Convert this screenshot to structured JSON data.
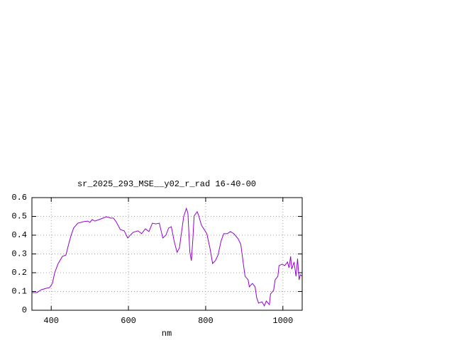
{
  "chart_data": {
    "type": "line",
    "title": "sr_2025_293_MSE__y02_r_rad 16-40-00",
    "x_label": "nm",
    "x": [
      350,
      363,
      374,
      387,
      396,
      403,
      409,
      418,
      429,
      438,
      445,
      451,
      458,
      469,
      484,
      495,
      500,
      506,
      513,
      524,
      534,
      543,
      554,
      561,
      568,
      579,
      589,
      598,
      603,
      612,
      625,
      634,
      644,
      653,
      662,
      671,
      680,
      689,
      697,
      704,
      711,
      719,
      726,
      732,
      737,
      743,
      750,
      754,
      759,
      763,
      767,
      770,
      778,
      781,
      789,
      803,
      811,
      818,
      825,
      832,
      840,
      847,
      856,
      864,
      873,
      884,
      891,
      897,
      902,
      910,
      913,
      921,
      928,
      932,
      937,
      946,
      952,
      957,
      965,
      968,
      976,
      980,
      987,
      990,
      998,
      1005,
      1012,
      1016,
      1020,
      1023,
      1029,
      1034,
      1038,
      1042,
      1045,
      1050
    ],
    "series": [
      {
        "color": "#9400d3",
        "values": [
          0.094,
          0.094,
          0.109,
          0.117,
          0.121,
          0.143,
          0.2,
          0.249,
          0.287,
          0.294,
          0.351,
          0.396,
          0.438,
          0.464,
          0.472,
          0.475,
          0.468,
          0.483,
          0.475,
          0.483,
          0.491,
          0.498,
          0.491,
          0.491,
          0.472,
          0.43,
          0.423,
          0.385,
          0.396,
          0.415,
          0.423,
          0.408,
          0.434,
          0.419,
          0.464,
          0.46,
          0.464,
          0.385,
          0.4,
          0.438,
          0.445,
          0.362,
          0.309,
          0.332,
          0.408,
          0.498,
          0.543,
          0.517,
          0.31,
          0.264,
          0.385,
          0.502,
          0.525,
          0.51,
          0.453,
          0.408,
          0.332,
          0.249,
          0.264,
          0.294,
          0.37,
          0.408,
          0.408,
          0.419,
          0.408,
          0.381,
          0.351,
          0.257,
          0.181,
          0.162,
          0.125,
          0.143,
          0.125,
          0.068,
          0.038,
          0.045,
          0.023,
          0.049,
          0.03,
          0.087,
          0.106,
          0.162,
          0.181,
          0.238,
          0.245,
          0.238,
          0.257,
          0.226,
          0.287,
          0.219,
          0.257,
          0.181,
          0.275,
          0.162,
          0.189,
          0.181
        ]
      }
    ],
    "xlim": [
      350,
      1050
    ],
    "xticks": [
      400,
      600,
      800,
      1000
    ],
    "ylim": [
      0,
      0.6
    ],
    "yticks": [
      0,
      0.1,
      0.2,
      0.3,
      0.4,
      0.5,
      0.6
    ],
    "grid": true
  }
}
